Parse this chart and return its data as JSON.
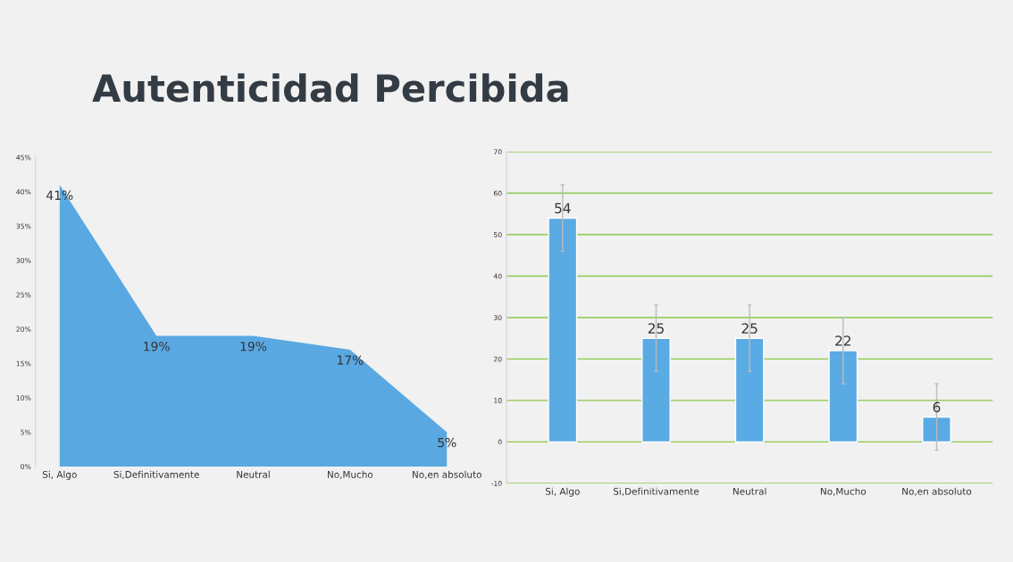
{
  "chart_data": [
    {
      "type": "area",
      "title": "Autenticidad Percibida",
      "categories": [
        "Si, Algo",
        "Si,Definitivamente",
        "Neutral",
        "No,Mucho",
        "No,en absoluto"
      ],
      "values": [
        41,
        19,
        19,
        17,
        5
      ],
      "color": "#5aa8e2",
      "value_labels": [
        "41%",
        "19%",
        "19%",
        "17%",
        "5%"
      ],
      "ylim": [
        0,
        45
      ],
      "yticks": [
        {
          "value": 0,
          "label": "0%"
        },
        {
          "value": 5,
          "label": "5%"
        },
        {
          "value": 10,
          "label": "10%"
        },
        {
          "value": 15,
          "label": "15%"
        },
        {
          "value": 20,
          "label": "20%"
        },
        {
          "value": 25,
          "label": "25%"
        },
        {
          "value": 30,
          "label": "30%"
        },
        {
          "value": 35,
          "label": "35%"
        },
        {
          "value": 40,
          "label": "40%"
        },
        {
          "value": 45,
          "label": "45%"
        }
      ],
      "grid": false
    },
    {
      "type": "bar",
      "categories": [
        "Si, Algo",
        "Si,Definitivamente",
        "Neutral",
        "No,Mucho",
        "No,en absoluto"
      ],
      "values": [
        54,
        25,
        25,
        22,
        6
      ],
      "errors": [
        8,
        8,
        8,
        8,
        8
      ],
      "color": "#5aaae4",
      "data_labels": true,
      "ylim": [
        -10,
        70
      ],
      "yticks": [
        -10,
        0,
        10,
        20,
        30,
        40,
        50,
        60,
        70
      ],
      "grid": "y"
    }
  ]
}
